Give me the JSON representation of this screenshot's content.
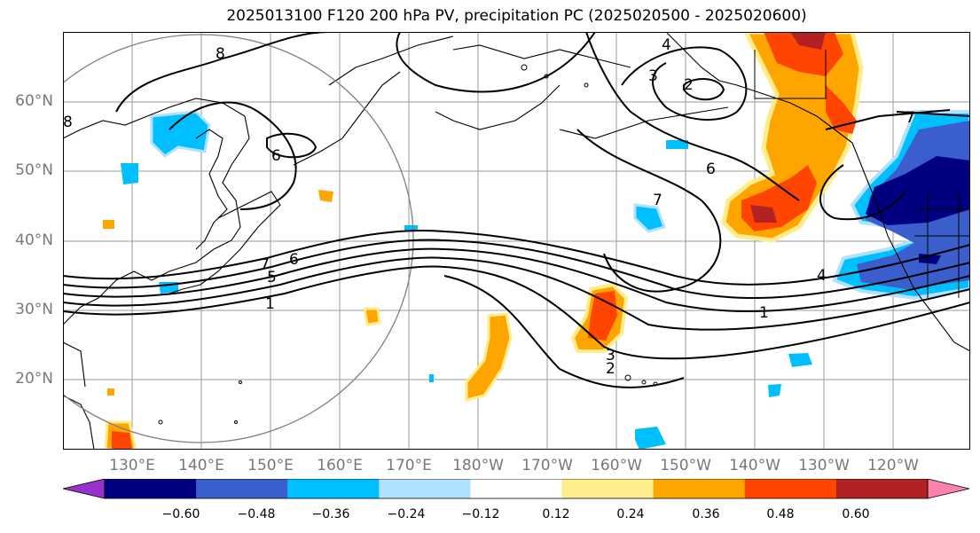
{
  "title": "2025013100 F120 200 hPa PV, precipitation PC (2025020500 - 2025020600)",
  "latitude_labels": [
    "60°N",
    "50°N",
    "40°N",
    "30°N",
    "20°N"
  ],
  "longitude_labels": [
    "130°E",
    "140°E",
    "150°E",
    "160°E",
    "170°E",
    "180°W",
    "170°W",
    "160°W",
    "150°W",
    "140°W",
    "130°W",
    "120°W"
  ],
  "pv_contour_labels": [
    "8",
    "6",
    "4",
    "3",
    "2",
    "6",
    "7",
    "7",
    "6",
    "5",
    "1",
    "3",
    "2",
    "1",
    "4",
    "7",
    "8"
  ],
  "colorbar": {
    "tick_labels": [
      "−0.60",
      "−0.48",
      "−0.36",
      "−0.24",
      "−0.12",
      "0.12",
      "0.24",
      "0.36",
      "0.48",
      "0.60"
    ],
    "colors": [
      "#9932CC",
      "#000080",
      "#3A5FCD",
      "#00BFFF",
      "#B0E2FF",
      "#FFFFFF",
      "#FFEC8B",
      "#FFA500",
      "#FF4500",
      "#B22222",
      "#FF82AB"
    ]
  },
  "colors": {
    "grid": "#999999",
    "coast": "#000000",
    "pv_contour": "#000000",
    "circle": "#808080"
  }
}
